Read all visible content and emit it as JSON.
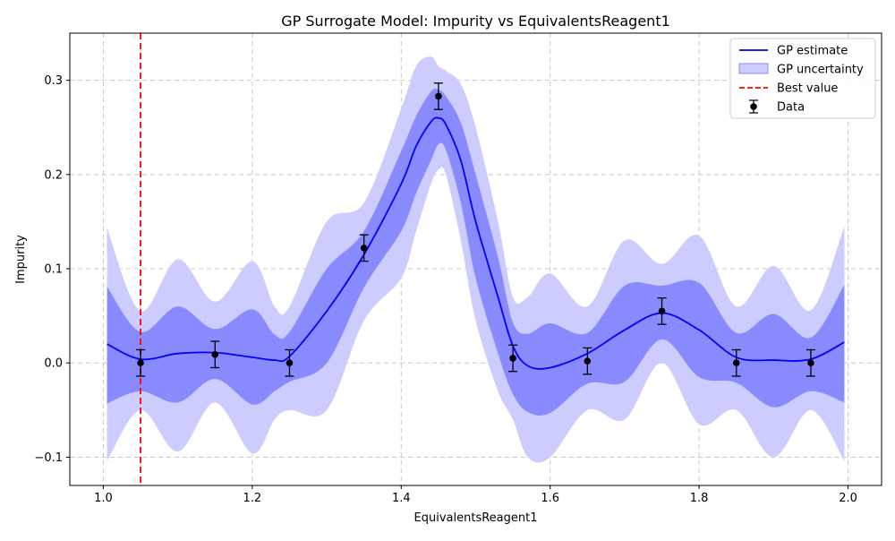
{
  "chart_data": {
    "type": "line",
    "title": "GP Surrogate Model: Impurity vs EquivalentsReagent1",
    "xlabel": "EquivalentsReagent1",
    "ylabel": "Impurity",
    "xlim": [
      0.955,
      2.045
    ],
    "ylim": [
      -0.13,
      0.35
    ],
    "xticks": [
      1.0,
      1.2,
      1.4,
      1.6,
      1.8,
      2.0
    ],
    "xtick_labels": [
      "1.0",
      "1.2",
      "1.4",
      "1.6",
      "1.8",
      "2.0"
    ],
    "yticks": [
      -0.1,
      0.0,
      0.1,
      0.2,
      0.3
    ],
    "ytick_labels": [
      "−0.1",
      "0.0",
      "0.1",
      "0.2",
      "0.3"
    ],
    "grid": true,
    "legend_position": "top-right",
    "legend": [
      {
        "label": "GP estimate",
        "kind": "line"
      },
      {
        "label": "GP uncertainty",
        "kind": "band"
      },
      {
        "label": "Best value",
        "kind": "dashed"
      },
      {
        "label": "Data",
        "kind": "errorbar"
      }
    ],
    "colors": {
      "estimate": "#0000ff",
      "band_inner": "#8a8aff",
      "band_outer": "#ccccff",
      "best": "#ff0000",
      "data": "#000000",
      "grid": "#c8c8c8"
    },
    "best_value_x": 1.05,
    "gp_estimate": {
      "x": [
        1.005,
        1.05,
        1.1,
        1.15,
        1.2,
        1.23,
        1.25,
        1.3,
        1.35,
        1.4,
        1.42,
        1.44,
        1.45,
        1.46,
        1.48,
        1.5,
        1.53,
        1.55,
        1.57,
        1.6,
        1.65,
        1.7,
        1.75,
        1.8,
        1.85,
        1.9,
        1.95,
        1.995
      ],
      "y": [
        0.02,
        0.004,
        0.01,
        0.011,
        0.006,
        0.003,
        0.007,
        0.055,
        0.115,
        0.19,
        0.23,
        0.256,
        0.26,
        0.253,
        0.215,
        0.15,
        0.07,
        0.018,
        -0.003,
        -0.005,
        0.01,
        0.035,
        0.053,
        0.035,
        0.006,
        0.003,
        0.004,
        0.022
      ]
    },
    "inner_band": {
      "x": [
        1.005,
        1.05,
        1.1,
        1.15,
        1.2,
        1.23,
        1.25,
        1.3,
        1.35,
        1.4,
        1.42,
        1.44,
        1.45,
        1.46,
        1.48,
        1.5,
        1.53,
        1.55,
        1.57,
        1.6,
        1.65,
        1.7,
        1.75,
        1.8,
        1.85,
        1.9,
        1.95,
        1.995
      ],
      "lower": [
        -0.043,
        -0.03,
        -0.042,
        -0.017,
        -0.044,
        -0.03,
        -0.02,
        0.0,
        0.08,
        0.14,
        0.18,
        0.215,
        0.232,
        0.226,
        0.17,
        0.09,
        0.01,
        -0.033,
        -0.052,
        -0.053,
        -0.022,
        -0.02,
        0.025,
        -0.015,
        -0.021,
        -0.047,
        -0.03,
        -0.042
      ],
      "upper": [
        0.081,
        0.033,
        0.06,
        0.036,
        0.057,
        0.03,
        0.033,
        0.1,
        0.14,
        0.225,
        0.262,
        0.288,
        0.29,
        0.283,
        0.255,
        0.2,
        0.112,
        0.043,
        0.031,
        0.042,
        0.032,
        0.082,
        0.082,
        0.085,
        0.032,
        0.052,
        0.027,
        0.083
      ]
    },
    "outer_band": {
      "x": [
        1.005,
        1.05,
        1.1,
        1.15,
        1.2,
        1.23,
        1.25,
        1.3,
        1.35,
        1.4,
        1.42,
        1.44,
        1.45,
        1.46,
        1.48,
        1.5,
        1.53,
        1.55,
        1.57,
        1.6,
        1.65,
        1.7,
        1.75,
        1.8,
        1.85,
        1.9,
        1.95,
        1.995
      ],
      "lower": [
        -0.104,
        -0.05,
        -0.094,
        -0.042,
        -0.096,
        -0.06,
        -0.05,
        -0.05,
        0.045,
        0.09,
        0.14,
        0.19,
        0.205,
        0.2,
        0.13,
        0.045,
        -0.03,
        -0.06,
        -0.1,
        -0.1,
        -0.05,
        -0.06,
        0.0,
        -0.065,
        -0.05,
        -0.1,
        -0.05,
        -0.104
      ],
      "upper": [
        0.143,
        0.055,
        0.11,
        0.065,
        0.108,
        0.06,
        0.06,
        0.15,
        0.17,
        0.27,
        0.315,
        0.325,
        0.315,
        0.31,
        0.296,
        0.25,
        0.15,
        0.07,
        0.07,
        0.095,
        0.06,
        0.13,
        0.105,
        0.135,
        0.06,
        0.103,
        0.056,
        0.145
      ]
    },
    "data_points": {
      "x": [
        1.05,
        1.15,
        1.25,
        1.35,
        1.45,
        1.55,
        1.65,
        1.75,
        1.85,
        1.95
      ],
      "y": [
        0.0,
        0.009,
        0.0,
        0.122,
        0.283,
        0.005,
        0.002,
        0.055,
        0.0,
        0.0
      ],
      "yerr": [
        0.014,
        0.014,
        0.014,
        0.014,
        0.014,
        0.014,
        0.014,
        0.014,
        0.014,
        0.014
      ]
    }
  }
}
